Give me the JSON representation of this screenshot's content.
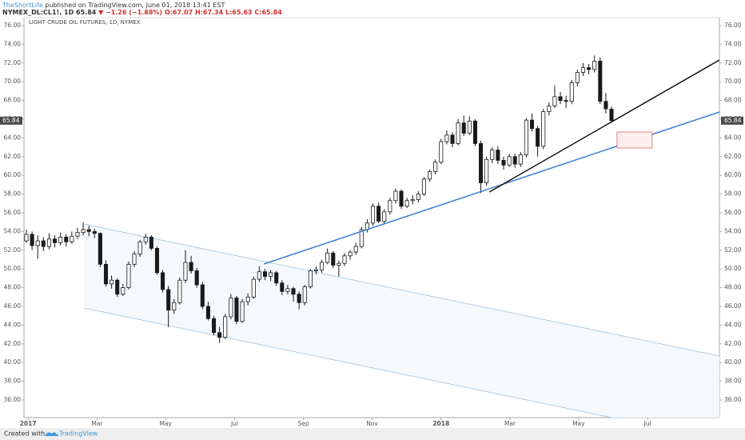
{
  "header": {
    "author": "TheShortLife",
    "published": " published on TradingView.com, June 01, 2018 13:41 EST"
  },
  "legend": {
    "symbol": "NYMEX_DL:CL1!, 1D",
    "price": "65.84",
    "change": "▼ −1.26 (−1.88%)",
    "ohlc": [
      "O:67.07",
      "H:67.34",
      "L:65.63",
      "C:65.84"
    ]
  },
  "chart_data": {
    "type": "candlestick",
    "title": "LIGHT CRUDE OIL FUTURES, 1D, NYMEX",
    "up_color": "#ffffff",
    "down_color": "#1a1a1a",
    "wick_color": "#1a1a1a",
    "ylim": [
      34.12,
      76.85
    ],
    "yticks": [
      {
        "value": 36,
        "label": "36.00"
      },
      {
        "value": 38,
        "label": "38.00"
      },
      {
        "value": 40,
        "label": "40.00"
      },
      {
        "value": 42,
        "label": "42.00"
      },
      {
        "value": 44,
        "label": "44.00"
      },
      {
        "value": 46,
        "label": "46.00"
      },
      {
        "value": 48,
        "label": "48.00"
      },
      {
        "value": 50,
        "label": "50.00"
      },
      {
        "value": 52,
        "label": "52.00"
      },
      {
        "value": 54,
        "label": "54.00"
      },
      {
        "value": 56,
        "label": "56.00"
      },
      {
        "value": 58,
        "label": "58.00"
      },
      {
        "value": 60,
        "label": "60.00"
      },
      {
        "value": 62,
        "label": "62.00"
      },
      {
        "value": 64,
        "label": "64.00"
      },
      {
        "value": 66,
        "label": "66.00"
      },
      {
        "value": 68,
        "label": "68.00"
      },
      {
        "value": 70,
        "label": "70.00"
      },
      {
        "value": 72,
        "label": "72.00"
      },
      {
        "value": 74,
        "label": "74.00"
      },
      {
        "value": 76,
        "label": "76.00"
      }
    ],
    "xlim": [
      2016.99,
      2018.674
    ],
    "xticks": [
      {
        "value": 2017,
        "label": "2017"
      },
      {
        "value": 2017.167,
        "label": "Mar"
      },
      {
        "value": 2017.333,
        "label": "May"
      },
      {
        "value": 2017.5,
        "label": "Jul"
      },
      {
        "value": 2017.667,
        "label": "Sep"
      },
      {
        "value": 2017.833,
        "label": "Nov"
      },
      {
        "value": 2018,
        "label": "2018"
      },
      {
        "value": 2018.167,
        "label": "Mar"
      },
      {
        "value": 2018.333,
        "label": "May"
      },
      {
        "value": 2018.5,
        "label": "Jul"
      }
    ],
    "last": {
      "value": 65.84,
      "label": "65.84",
      "color": "#4a4a4a"
    },
    "candles": [
      [
        53.0,
        54.2,
        52.8,
        53.7
      ],
      [
        53.7,
        54.0,
        52.0,
        52.5
      ],
      [
        52.5,
        53.6,
        51.1,
        53.0
      ],
      [
        53.0,
        53.4,
        51.9,
        52.4
      ],
      [
        52.4,
        53.8,
        52.1,
        53.2
      ],
      [
        53.2,
        53.6,
        52.3,
        52.8
      ],
      [
        52.8,
        53.9,
        52.5,
        53.4
      ],
      [
        53.4,
        53.7,
        52.4,
        52.9
      ],
      [
        52.9,
        54.0,
        52.7,
        53.5
      ],
      [
        53.5,
        54.4,
        53.2,
        53.9
      ],
      [
        53.9,
        55.0,
        53.6,
        54.2
      ],
      [
        54.2,
        54.6,
        53.5,
        54.0
      ],
      [
        54.0,
        54.3,
        53.3,
        53.8
      ],
      [
        53.8,
        53.9,
        50.2,
        50.5
      ],
      [
        50.5,
        50.9,
        48.1,
        48.4
      ],
      [
        48.4,
        49.3,
        47.9,
        48.8
      ],
      [
        48.8,
        49.0,
        47.0,
        47.3
      ],
      [
        47.3,
        48.4,
        47.1,
        48.0
      ],
      [
        48.0,
        50.8,
        47.8,
        50.5
      ],
      [
        50.5,
        51.9,
        50.2,
        51.6
      ],
      [
        51.6,
        53.1,
        51.3,
        52.9
      ],
      [
        52.9,
        53.8,
        52.6,
        53.4
      ],
      [
        53.4,
        53.6,
        52.0,
        52.2
      ],
      [
        52.2,
        52.4,
        49.4,
        49.6
      ],
      [
        49.6,
        49.9,
        47.5,
        47.8
      ],
      [
        47.8,
        48.2,
        43.8,
        45.6
      ],
      [
        45.6,
        46.8,
        45.2,
        46.4
      ],
      [
        46.4,
        49.1,
        46.2,
        48.8
      ],
      [
        48.8,
        52.0,
        48.5,
        50.7
      ],
      [
        50.7,
        51.4,
        49.5,
        49.8
      ],
      [
        49.8,
        50.1,
        48.0,
        48.3
      ],
      [
        48.3,
        48.6,
        45.7,
        46.0
      ],
      [
        46.0,
        46.5,
        44.5,
        44.7
      ],
      [
        44.7,
        45.0,
        42.9,
        43.2
      ],
      [
        43.2,
        43.8,
        42.1,
        42.7
      ],
      [
        42.7,
        45.2,
        42.5,
        44.9
      ],
      [
        44.9,
        47.3,
        44.6,
        46.9
      ],
      [
        46.9,
        47.1,
        44.1,
        44.4
      ],
      [
        44.4,
        46.8,
        44.2,
        46.5
      ],
      [
        46.5,
        47.4,
        46.1,
        47.0
      ],
      [
        47.0,
        49.2,
        46.8,
        48.9
      ],
      [
        48.9,
        50.3,
        48.6,
        49.7
      ],
      [
        49.7,
        50.0,
        48.8,
        49.2
      ],
      [
        49.2,
        49.9,
        48.7,
        49.6
      ],
      [
        49.6,
        49.8,
        48.2,
        48.5
      ],
      [
        48.5,
        48.8,
        47.2,
        47.6
      ],
      [
        47.6,
        48.3,
        47.3,
        47.9
      ],
      [
        47.9,
        48.1,
        46.5,
        47.3
      ],
      [
        47.3,
        47.6,
        45.7,
        46.4
      ],
      [
        46.4,
        48.3,
        46.1,
        48.1
      ],
      [
        48.1,
        50.0,
        47.9,
        49.8
      ],
      [
        49.8,
        50.3,
        49.4,
        49.9
      ],
      [
        49.9,
        51.0,
        49.6,
        50.7
      ],
      [
        50.7,
        52.2,
        50.5,
        51.7
      ],
      [
        51.7,
        51.9,
        50.1,
        50.4
      ],
      [
        50.4,
        50.9,
        49.2,
        50.6
      ],
      [
        50.6,
        51.7,
        50.3,
        51.4
      ],
      [
        51.4,
        52.0,
        51.0,
        51.8
      ],
      [
        51.8,
        52.8,
        51.5,
        52.4
      ],
      [
        52.4,
        54.5,
        52.2,
        54.2
      ],
      [
        54.2,
        55.3,
        53.9,
        54.9
      ],
      [
        54.9,
        57.0,
        54.6,
        56.7
      ],
      [
        56.7,
        57.1,
        54.9,
        55.1
      ],
      [
        55.1,
        56.4,
        54.9,
        56.1
      ],
      [
        56.1,
        57.6,
        55.8,
        57.3
      ],
      [
        57.3,
        58.6,
        57.0,
        58.3
      ],
      [
        58.3,
        58.5,
        56.4,
        56.7
      ],
      [
        56.7,
        57.6,
        56.5,
        57.3
      ],
      [
        57.3,
        57.9,
        56.9,
        57.4
      ],
      [
        57.4,
        58.3,
        57.1,
        58.0
      ],
      [
        58.0,
        59.8,
        57.8,
        59.6
      ],
      [
        59.6,
        60.6,
        59.3,
        60.4
      ],
      [
        60.4,
        61.7,
        60.1,
        61.4
      ],
      [
        61.4,
        63.9,
        61.2,
        63.6
      ],
      [
        63.6,
        64.8,
        63.3,
        64.3
      ],
      [
        64.3,
        64.6,
        63.0,
        63.4
      ],
      [
        63.4,
        66.0,
        63.2,
        65.6
      ],
      [
        65.6,
        66.4,
        64.2,
        64.5
      ],
      [
        64.5,
        66.3,
        64.3,
        65.8
      ],
      [
        65.8,
        66.0,
        63.1,
        63.4
      ],
      [
        63.4,
        63.7,
        58.1,
        59.2
      ],
      [
        59.2,
        62.0,
        58.9,
        61.7
      ],
      [
        61.7,
        63.0,
        61.3,
        62.7
      ],
      [
        62.7,
        63.1,
        61.2,
        61.6
      ],
      [
        61.6,
        62.0,
        60.6,
        61.1
      ],
      [
        61.1,
        62.3,
        60.9,
        62.0
      ],
      [
        62.0,
        62.3,
        60.8,
        61.2
      ],
      [
        61.2,
        62.5,
        60.9,
        62.2
      ],
      [
        62.2,
        66.1,
        61.9,
        65.9
      ],
      [
        65.9,
        66.6,
        64.7,
        65.0
      ],
      [
        65.0,
        65.3,
        62.0,
        63.1
      ],
      [
        63.1,
        67.1,
        62.8,
        66.8
      ],
      [
        66.8,
        67.8,
        66.4,
        67.4
      ],
      [
        67.4,
        69.6,
        67.2,
        68.4
      ],
      [
        68.4,
        68.9,
        67.6,
        68.0
      ],
      [
        68.0,
        68.5,
        67.2,
        67.9
      ],
      [
        67.9,
        70.2,
        67.6,
        69.9
      ],
      [
        69.9,
        71.3,
        69.5,
        71.0
      ],
      [
        71.0,
        72.0,
        70.6,
        71.5
      ],
      [
        71.5,
        71.9,
        70.8,
        71.3
      ],
      [
        71.3,
        72.8,
        71.0,
        72.2
      ],
      [
        72.2,
        72.6,
        67.6,
        67.9
      ],
      [
        67.9,
        68.8,
        66.6,
        67.1
      ],
      [
        67.07,
        67.34,
        65.63,
        65.84
      ]
    ],
    "drawings": {
      "channel": {
        "upper": [
          [
            2017.135,
            54.8
          ],
          [
            2018.674,
            40.7
          ]
        ],
        "lower": [
          [
            2017.135,
            45.83
          ],
          [
            2018.674,
            31.73
          ]
        ],
        "color": "#9ec3df",
        "fill": "#f4f9fd"
      },
      "trendlines": [
        {
          "points": [
            [
              2017.571,
              50.53
            ],
            [
              2018.674,
              66.77
            ]
          ],
          "color": "#3d7fd1"
        },
        {
          "points": [
            [
              2018.117,
              58.22
            ],
            [
              2018.674,
              72.32
            ]
          ],
          "color": "#111111"
        }
      ],
      "box": {
        "points": [
          [
            2018.426,
            64.63
          ],
          [
            2018.511,
            62.92
          ]
        ],
        "color": "#e06666",
        "fill": "#fdeeee"
      }
    }
  },
  "footer": {
    "created": "Created with",
    "brand": "TradingView"
  }
}
